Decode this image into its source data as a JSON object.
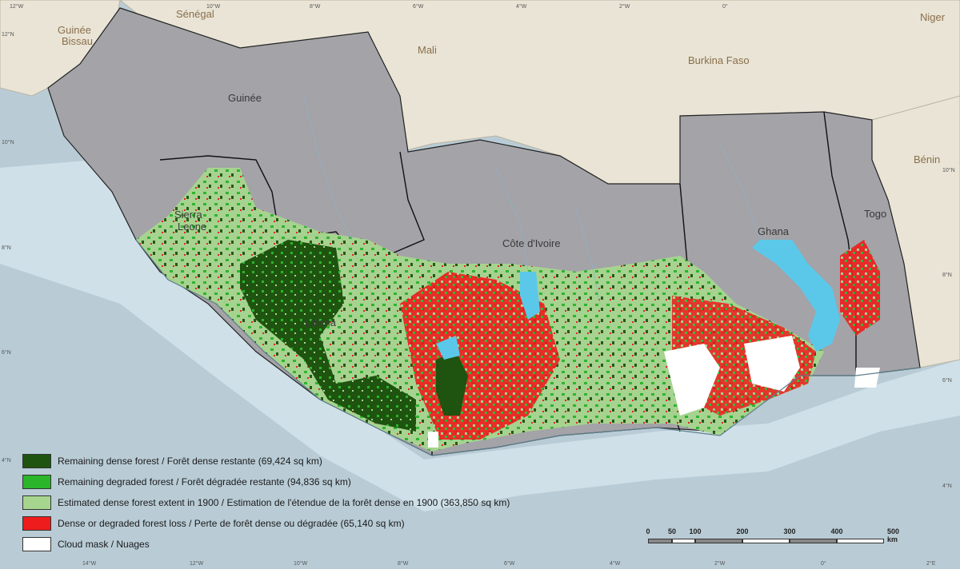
{
  "map": {
    "countries": [
      {
        "id": "guinee",
        "name": "Guinée",
        "type": "study"
      },
      {
        "id": "sierra-leone",
        "name": "Sierra\nLeone",
        "line1": "Sierra",
        "line2": "Leone",
        "type": "study"
      },
      {
        "id": "liberia",
        "name": "Liberia",
        "type": "study"
      },
      {
        "id": "cote-divoire",
        "name": "Côte d'Ivoire",
        "type": "study"
      },
      {
        "id": "ghana",
        "name": "Ghana",
        "type": "study"
      },
      {
        "id": "togo",
        "name": "Togo",
        "type": "study"
      }
    ],
    "neighbors": {
      "senegal": "Sénégal",
      "guinee_bissau_1": "Guinée",
      "guinee_bissau_2": "Bissau",
      "mali": "Mali",
      "burkina_faso": "Burkina Faso",
      "niger": "Niger",
      "benin": "Bénin"
    },
    "labels": {
      "guinee": "Guinée",
      "sierra_leone_1": "Sierra",
      "sierra_leone_2": "Leone",
      "liberia": "Liberia",
      "cote_divoire": "Côte d'Ivoire",
      "ghana": "Ghana",
      "togo": "Togo"
    },
    "graticule": {
      "top": [
        "12°W",
        "10°W",
        "8°W",
        "6°W",
        "4°W",
        "2°W",
        "0°"
      ],
      "bottom": [
        "14°W",
        "12°W",
        "10°W",
        "8°W",
        "6°W",
        "4°W",
        "2°W",
        "0°",
        "2°E"
      ],
      "left": [
        "12°N",
        "10°N",
        "8°N",
        "6°N",
        "4°N"
      ],
      "right": [
        "10°N",
        "8°N",
        "6°N",
        "4°N"
      ]
    },
    "colors": {
      "ocean": "#b9ccd6",
      "neighbor_land": "#e9e4d6",
      "study_land": "#a3a3a8",
      "water": "#5bc8ea"
    }
  },
  "legend": {
    "items": [
      {
        "label": "Remaining dense forest / Forêt dense restante (69,424 sq km)",
        "color": "#1f5410",
        "area_sq_km": 69424
      },
      {
        "label": "Remaining degraded forest / Forêt dégradée restante (94,836 sq km)",
        "color": "#2ab52a",
        "area_sq_km": 94836
      },
      {
        "label": "Estimated dense forest extent in 1900 / Estimation de l'étendue de la forêt dense en 1900 (363,850 sq km)",
        "color": "#a6d68e",
        "area_sq_km": 363850
      },
      {
        "label": "Dense or degraded forest loss / Perte de forêt dense ou dégradée (65,140 sq km)",
        "color": "#ee1c1c",
        "area_sq_km": 65140
      },
      {
        "label": "Cloud mask / Nuages",
        "color": "#ffffff"
      }
    ]
  },
  "scalebar": {
    "ticks": [
      "0",
      "50",
      "100",
      "200",
      "300",
      "400",
      "500 km"
    ],
    "values_km": [
      0,
      50,
      100,
      200,
      300,
      400,
      500
    ]
  }
}
